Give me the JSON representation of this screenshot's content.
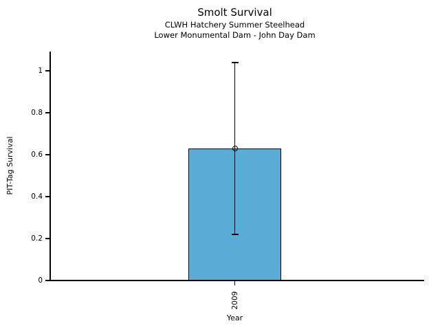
{
  "chart_data": {
    "type": "bar",
    "title": "Smolt Survival",
    "subtitle_lines": [
      "CLWH Hatchery Summer Steelhead",
      "Lower Monumental Dam - John Day Dam"
    ],
    "xlabel": "Year",
    "ylabel": "PIT-Tag Survival",
    "categories": [
      "2009"
    ],
    "values": [
      0.63
    ],
    "error_bars": {
      "upper": [
        1.04
      ],
      "lower": [
        0.22
      ]
    },
    "yticks": [
      0,
      0.2,
      0.4,
      0.6,
      0.8,
      1
    ],
    "ytick_labels": [
      "0",
      "0.2",
      "0.4",
      "0.6",
      "0.8",
      "1"
    ],
    "ylim": [
      0,
      1.09
    ],
    "grid": false,
    "legend": null,
    "marker": "open-circle",
    "colors": {
      "bar_fill": "#5BACD6",
      "bar_edge": "#000000",
      "axis": "#000000",
      "text": "#000000",
      "background": "#FFFFFF"
    }
  }
}
